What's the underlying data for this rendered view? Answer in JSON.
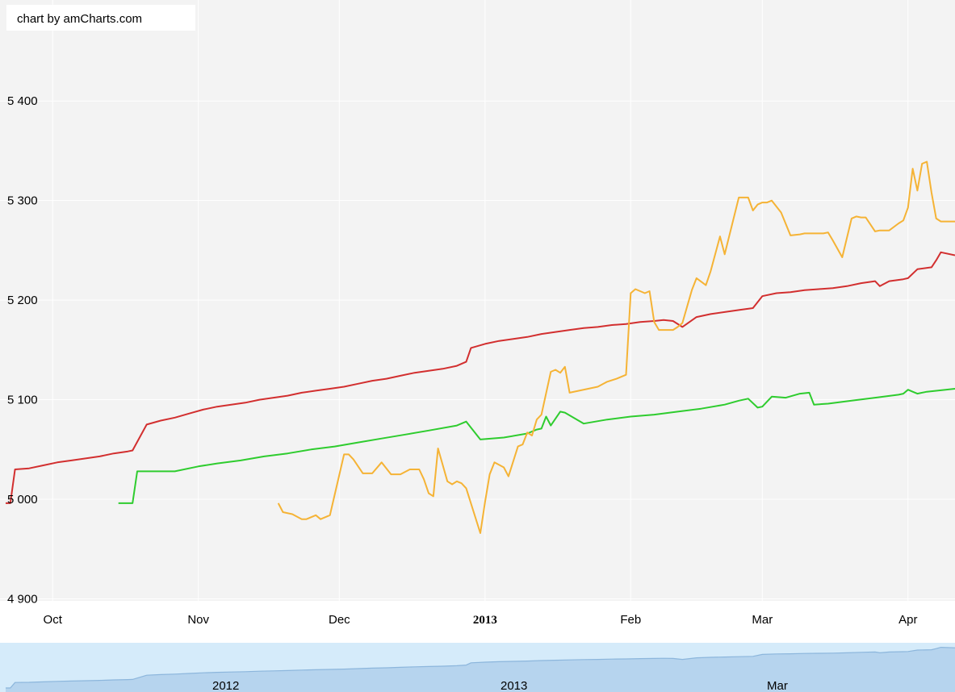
{
  "credit": "chart by amCharts.com",
  "colors": {
    "plot_bg": "#f3f3f3",
    "grid": "#ffffff",
    "red": "#d22f2f",
    "green": "#2ecc2e",
    "orange": "#f5b335",
    "scroll_bg": "#d5ebfa",
    "scroll_fill": "#b6d4ee",
    "scroll_line": "#8cb6dc"
  },
  "chart_data": {
    "type": "line",
    "xlabel": "",
    "ylabel": "",
    "ylim": [
      4900,
      5450
    ],
    "xlim": [
      "2012-09-21",
      "2013-04-11"
    ],
    "y_ticks": [
      {
        "value": 4900,
        "label": "4 900"
      },
      {
        "value": 5000,
        "label": "5 000"
      },
      {
        "value": 5100,
        "label": "5 100"
      },
      {
        "value": 5200,
        "label": "5 200"
      },
      {
        "value": 5300,
        "label": "5 300"
      },
      {
        "value": 5400,
        "label": "5 400"
      }
    ],
    "x_ticks": [
      {
        "date": "2012-10-01",
        "label": "Oct",
        "bold": false
      },
      {
        "date": "2012-11-01",
        "label": "Nov",
        "bold": false
      },
      {
        "date": "2012-12-01",
        "label": "Dec",
        "bold": false
      },
      {
        "date": "2013-01-01",
        "label": "2013",
        "bold": true
      },
      {
        "date": "2013-02-01",
        "label": "Feb",
        "bold": false
      },
      {
        "date": "2013-03-01",
        "label": "Mar",
        "bold": false
      },
      {
        "date": "2013-04-01",
        "label": "Apr",
        "bold": false
      }
    ],
    "series": [
      {
        "color": "red",
        "x": [
          "2012-09-21",
          "2012-09-22",
          "2012-09-23",
          "2012-09-26",
          "2012-09-29",
          "2012-10-02",
          "2012-10-05",
          "2012-10-08",
          "2012-10-11",
          "2012-10-14",
          "2012-10-17",
          "2012-10-18",
          "2012-10-21",
          "2012-10-24",
          "2012-10-27",
          "2012-10-30",
          "2012-11-02",
          "2012-11-05",
          "2012-11-08",
          "2012-11-11",
          "2012-11-14",
          "2012-11-17",
          "2012-11-20",
          "2012-11-23",
          "2012-11-26",
          "2012-11-29",
          "2012-12-02",
          "2012-12-05",
          "2012-12-08",
          "2012-12-11",
          "2012-12-14",
          "2012-12-17",
          "2012-12-20",
          "2012-12-23",
          "2012-12-26",
          "2012-12-28",
          "2012-12-29",
          "2013-01-01",
          "2013-01-04",
          "2013-01-07",
          "2013-01-10",
          "2013-01-13",
          "2013-01-16",
          "2013-01-19",
          "2013-01-22",
          "2013-01-25",
          "2013-01-28",
          "2013-01-31",
          "2013-02-03",
          "2013-02-06",
          "2013-02-08",
          "2013-02-10",
          "2013-02-12",
          "2013-02-15",
          "2013-02-18",
          "2013-02-21",
          "2013-02-24",
          "2013-02-27",
          "2013-03-01",
          "2013-03-04",
          "2013-03-07",
          "2013-03-10",
          "2013-03-13",
          "2013-03-16",
          "2013-03-19",
          "2013-03-22",
          "2013-03-25",
          "2013-03-26",
          "2013-03-28",
          "2013-03-31",
          "2013-04-01",
          "2013-04-03",
          "2013-04-06",
          "2013-04-07",
          "2013-04-08",
          "2013-04-11"
        ],
        "values": [
          4996,
          4996,
          5030,
          5031,
          5034,
          5037,
          5039,
          5041,
          5043,
          5046,
          5048,
          5049,
          5075,
          5079,
          5082,
          5086,
          5090,
          5093,
          5095,
          5097,
          5100,
          5102,
          5104,
          5107,
          5109,
          5111,
          5113,
          5116,
          5119,
          5121,
          5124,
          5127,
          5129,
          5131,
          5134,
          5138,
          5152,
          5156,
          5159,
          5161,
          5163,
          5166,
          5168,
          5170,
          5172,
          5173,
          5175,
          5176,
          5178,
          5179,
          5180,
          5179,
          5173,
          5183,
          5186,
          5188,
          5190,
          5192,
          5204,
          5207,
          5208,
          5210,
          5211,
          5212,
          5214,
          5217,
          5219,
          5214,
          5219,
          5221,
          5222,
          5231,
          5233,
          5240,
          5248,
          5245
        ]
      },
      {
        "color": "green",
        "x": [
          "2012-10-15",
          "2012-10-18",
          "2012-10-19",
          "2012-10-23",
          "2012-10-27",
          "2012-11-01",
          "2012-11-05",
          "2012-11-10",
          "2012-11-15",
          "2012-11-20",
          "2012-11-25",
          "2012-11-30",
          "2012-12-05",
          "2012-12-10",
          "2012-12-15",
          "2012-12-20",
          "2012-12-26",
          "2012-12-28",
          "2012-12-31",
          "2013-01-05",
          "2013-01-10",
          "2013-01-12",
          "2013-01-13",
          "2013-01-14",
          "2013-01-15",
          "2013-01-17",
          "2013-01-18",
          "2013-01-22",
          "2013-01-27",
          "2013-02-01",
          "2013-02-06",
          "2013-02-11",
          "2013-02-16",
          "2013-02-21",
          "2013-02-24",
          "2013-02-26",
          "2013-02-28",
          "2013-03-01",
          "2013-03-03",
          "2013-03-06",
          "2013-03-09",
          "2013-03-11",
          "2013-03-12",
          "2013-03-15",
          "2013-03-20",
          "2013-03-25",
          "2013-03-30",
          "2013-03-31",
          "2013-04-01",
          "2013-04-02",
          "2013-04-03",
          "2013-04-05",
          "2013-04-11"
        ],
        "values": [
          4996,
          4996,
          5028,
          5028,
          5028,
          5033,
          5036,
          5039,
          5043,
          5046,
          5050,
          5053,
          5057,
          5061,
          5065,
          5069,
          5074,
          5078,
          5060,
          5062,
          5066,
          5070,
          5071,
          5083,
          5074,
          5088,
          5087,
          5076,
          5080,
          5083,
          5085,
          5088,
          5091,
          5095,
          5099,
          5101,
          5092,
          5093,
          5103,
          5102,
          5106,
          5107,
          5095,
          5096,
          5099,
          5102,
          5105,
          5106,
          5110,
          5108,
          5106,
          5108,
          5111
        ]
      },
      {
        "color": "orange",
        "x": [
          "2012-11-18",
          "2012-11-19",
          "2012-11-21",
          "2012-11-23",
          "2012-11-24",
          "2012-11-26",
          "2012-11-27",
          "2012-11-29",
          "2012-12-02",
          "2012-12-03",
          "2012-12-04",
          "2012-12-06",
          "2012-12-08",
          "2012-12-10",
          "2012-12-12",
          "2012-12-14",
          "2012-12-16",
          "2012-12-18",
          "2012-12-19",
          "2012-12-20",
          "2012-12-21",
          "2012-12-22",
          "2012-12-24",
          "2012-12-25",
          "2012-12-26",
          "2012-12-27",
          "2012-12-28",
          "2012-12-31",
          "2013-01-01",
          "2013-01-02",
          "2013-01-03",
          "2013-01-05",
          "2013-01-06",
          "2013-01-08",
          "2013-01-09",
          "2013-01-10",
          "2013-01-11",
          "2013-01-12",
          "2013-01-13",
          "2013-01-15",
          "2013-01-16",
          "2013-01-17",
          "2013-01-18",
          "2013-01-19",
          "2013-01-25",
          "2013-01-27",
          "2013-01-29",
          "2013-01-31",
          "2013-02-01",
          "2013-02-02",
          "2013-02-04",
          "2013-02-05",
          "2013-02-06",
          "2013-02-07",
          "2013-02-08",
          "2013-02-09",
          "2013-02-10",
          "2013-02-11",
          "2013-02-12",
          "2013-02-14",
          "2013-02-15",
          "2013-02-17",
          "2013-02-18",
          "2013-02-20",
          "2013-02-21",
          "2013-02-24",
          "2013-02-26",
          "2013-02-27",
          "2013-02-28",
          "2013-03-01",
          "2013-03-02",
          "2013-03-03",
          "2013-03-05",
          "2013-03-07",
          "2013-03-09",
          "2013-03-10",
          "2013-03-13",
          "2013-03-14",
          "2013-03-15",
          "2013-03-16",
          "2013-03-18",
          "2013-03-20",
          "2013-03-21",
          "2013-03-22",
          "2013-03-23",
          "2013-03-25",
          "2013-03-26",
          "2013-03-27",
          "2013-03-28",
          "2013-03-30",
          "2013-03-31",
          "2013-04-01",
          "2013-04-02",
          "2013-04-03",
          "2013-04-04",
          "2013-04-05",
          "2013-04-06",
          "2013-04-07",
          "2013-04-08",
          "2013-04-09",
          "2013-04-11"
        ],
        "values": [
          4996,
          4987,
          4985,
          4980,
          4980,
          4984,
          4980,
          4984,
          5045,
          5045,
          5040,
          5026,
          5026,
          5037,
          5025,
          5025,
          5030,
          5030,
          5020,
          5006,
          5003,
          5051,
          5018,
          5015,
          5018,
          5016,
          5011,
          4966,
          4997,
          5025,
          5037,
          5032,
          5023,
          5053,
          5055,
          5067,
          5064,
          5080,
          5085,
          5128,
          5130,
          5127,
          5133,
          5107,
          5113,
          5118,
          5121,
          5125,
          5207,
          5211,
          5207,
          5209,
          5178,
          5170,
          5170,
          5170,
          5170,
          5173,
          5177,
          5210,
          5222,
          5215,
          5229,
          5264,
          5246,
          5303,
          5303,
          5290,
          5296,
          5298,
          5298,
          5300,
          5288,
          5265,
          5266,
          5267,
          5267,
          5267,
          5268,
          5260,
          5243,
          5282,
          5284,
          5283,
          5283,
          5269,
          5270,
          5270,
          5270,
          5277,
          5280,
          5293,
          5332,
          5310,
          5337,
          5339,
          5308,
          5282,
          5279,
          5279,
          5279
        ]
      }
    ]
  },
  "scrollbar": {
    "labels": [
      "2012",
      "2013",
      "Mar"
    ]
  }
}
